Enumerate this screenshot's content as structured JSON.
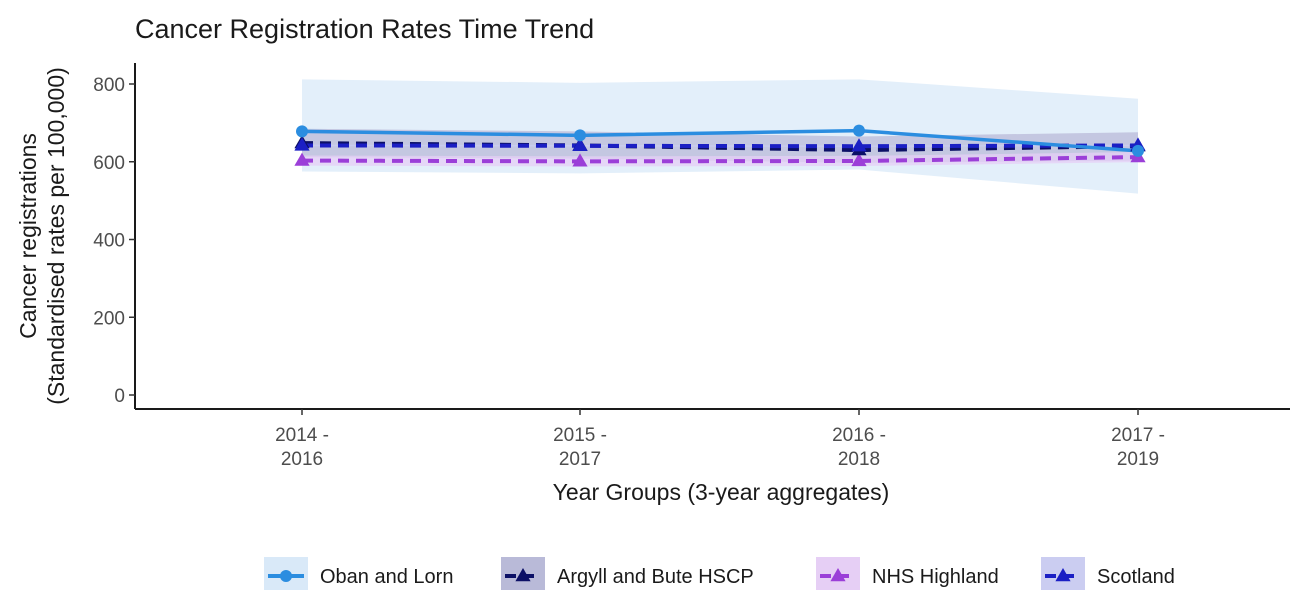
{
  "chart_data": {
    "type": "line",
    "title": "Cancer Registration Rates Time Trend",
    "xlabel": "Year Groups (3-year aggregates)",
    "ylabel_lines": [
      "Cancer registrations",
      "(Standardised rates per 100,000)"
    ],
    "categories": [
      [
        "2014 -",
        "2016"
      ],
      [
        "2015 -",
        "2017"
      ],
      [
        "2016 -",
        "2018"
      ],
      [
        "2017 -",
        "2019"
      ]
    ],
    "ylim": [
      0,
      850
    ],
    "yticks": [
      "0",
      "200",
      "400",
      "600",
      "800"
    ],
    "grid": false,
    "legend_position": "bottom",
    "series": [
      {
        "name": "Oban and Lorn",
        "values": [
          678,
          668,
          680,
          628
        ],
        "ci_lower": [
          575,
          570,
          580,
          518
        ],
        "ci_upper": [
          812,
          803,
          812,
          762
        ],
        "color": "#2b8de0",
        "ribbon_color": "#d9e9f8",
        "line_style": "solid",
        "marker": "circle"
      },
      {
        "name": "Argyll and Bute HSCP",
        "values": [
          648,
          642,
          630,
          640
        ],
        "ci_lower": [
          612,
          608,
          597,
          603
        ],
        "ci_upper": [
          685,
          678,
          665,
          676
        ],
        "color": "#0c1066",
        "ribbon_color": "#b9bad8",
        "line_style": "dashed",
        "marker": "triangle"
      },
      {
        "name": "NHS Highland",
        "values": [
          603,
          601,
          602,
          612
        ],
        "ci_lower": [
          590,
          588,
          589,
          599
        ],
        "ci_upper": [
          616,
          614,
          615,
          625
        ],
        "color": "#9b3fd8",
        "ribbon_color": "#e6cff5",
        "line_style": "dashed",
        "marker": "triangle"
      },
      {
        "name": "Scotland",
        "values": [
          642,
          641,
          640,
          642
        ],
        "ci_lower": [
          640,
          639,
          638,
          640
        ],
        "ci_upper": [
          644,
          643,
          642,
          644
        ],
        "color": "#1b1fc4",
        "ribbon_color": "#cbcdf1",
        "line_style": "dashed",
        "marker": "triangle"
      }
    ]
  }
}
